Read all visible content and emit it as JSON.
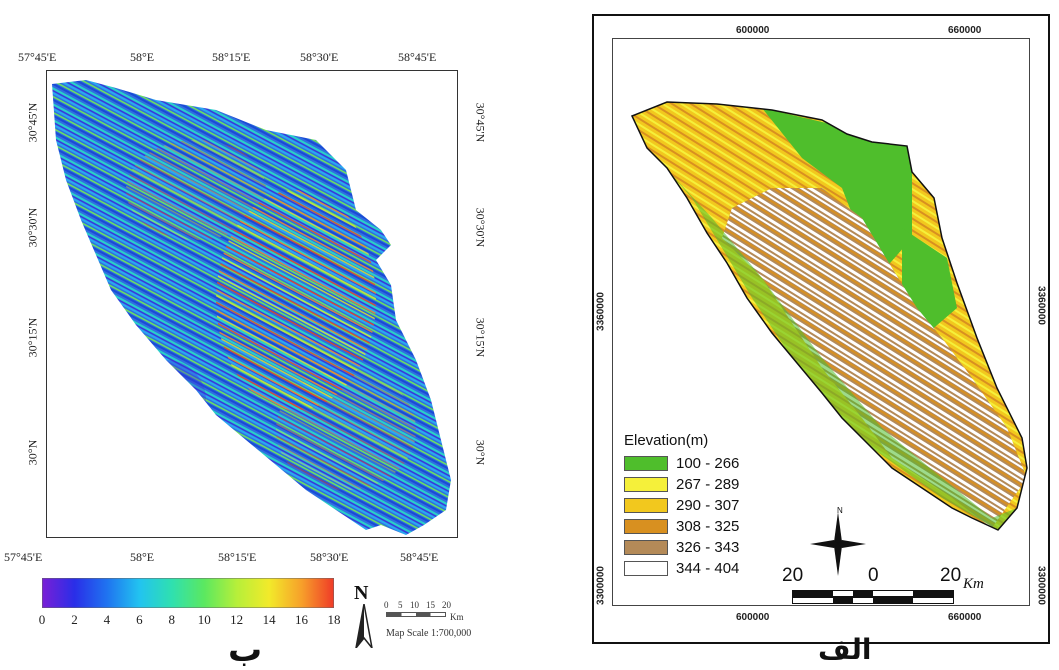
{
  "left_map": {
    "top_ticks": [
      "57°45'E",
      "58°E",
      "58°15'E",
      "58°30'E",
      "58°45'E"
    ],
    "bottom_ticks": [
      "57°45'E",
      "58°E",
      "58°15'E",
      "58°30'E",
      "58°45'E"
    ],
    "left_ticks": [
      "30°45'N",
      "30°30'N",
      "30°15'N",
      "30°N"
    ],
    "right_ticks": [
      "30°45'N",
      "30°30'N",
      "30°15'N",
      "30°N"
    ],
    "colorbar": {
      "ticks": [
        "0",
        "2",
        "4",
        "6",
        "8",
        "10",
        "12",
        "14",
        "16",
        "18"
      ],
      "min": 0,
      "max": 18,
      "colors": [
        "#7a1fd6",
        "#2a2ee8",
        "#1f73f0",
        "#22c3f0",
        "#2fe0b0",
        "#5be860",
        "#b6ef3a",
        "#f2ea2a",
        "#f7a02a",
        "#ef3a28"
      ]
    },
    "north_label": "N",
    "scalebar_ticks": [
      "0",
      "5",
      "10",
      "15",
      "20"
    ],
    "scalebar_unit": "Km",
    "map_scale": "Map Scale 1:700,000",
    "panel_label": "ب"
  },
  "right_map": {
    "top_ticks": [
      "600000",
      "660000"
    ],
    "bottom_ticks": [
      "600000",
      "660000"
    ],
    "left_ticks": [
      "3360000",
      "3300000"
    ],
    "right_ticks": [
      "3360000",
      "3300000"
    ],
    "legend_title": "Elevation(m)",
    "legend_items": [
      {
        "label": "100 - 266",
        "color": "#4fbe2c"
      },
      {
        "label": "267 - 289",
        "color": "#f5f03a"
      },
      {
        "label": "290 - 307",
        "color": "#f2c81e"
      },
      {
        "label": "308 - 325",
        "color": "#d89020"
      },
      {
        "label": "326 - 343",
        "color": "#b48a58"
      },
      {
        "label": "344 - 404",
        "color": "#ffffff"
      }
    ],
    "scale_labels": [
      "20",
      "0",
      "20"
    ],
    "scale_unit": "Km",
    "compass_n": "N",
    "panel_label": "الف"
  }
}
